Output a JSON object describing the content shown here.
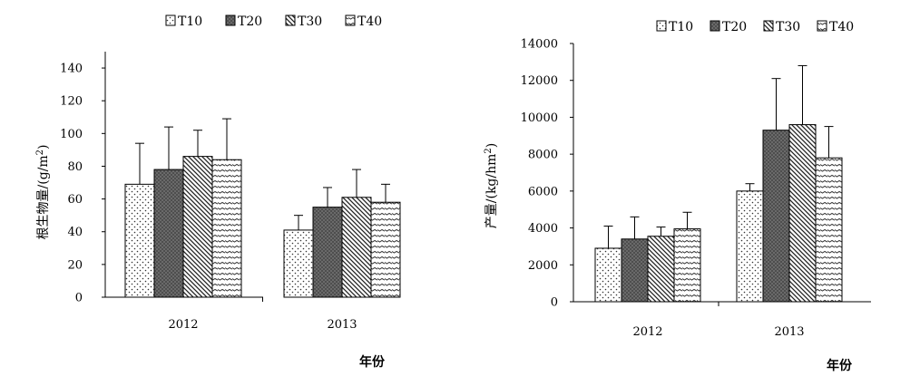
{
  "chart_data": [
    {
      "type": "bar",
      "title": "",
      "xlabel": "年份",
      "ylabel": "根生物量/(g/m²)",
      "ylabel_main": "根生物量/(g/m",
      "ylabel_sup": "2",
      "ylabel_close": ")",
      "ylim": [
        0,
        150
      ],
      "yticks": [
        0,
        20,
        40,
        60,
        80,
        100,
        120,
        140
      ],
      "categories": [
        "2012",
        "2013"
      ],
      "legend_position": "top",
      "grid": false,
      "series": [
        {
          "name": "T10",
          "pattern": "dots",
          "values": [
            69,
            41
          ],
          "errors": [
            25,
            9
          ]
        },
        {
          "name": "T20",
          "pattern": "solid-gray",
          "values": [
            78,
            55
          ],
          "errors": [
            26,
            12
          ]
        },
        {
          "name": "T30",
          "pattern": "diag-down",
          "values": [
            86,
            61
          ],
          "errors": [
            16,
            17
          ]
        },
        {
          "name": "T40",
          "pattern": "wave",
          "values": [
            84,
            58
          ],
          "errors": [
            25,
            11
          ]
        }
      ]
    },
    {
      "type": "bar",
      "title": "",
      "xlabel": "年份",
      "ylabel": "产量/(kg/hm²)",
      "ylabel_main": "产量/(kg/hm",
      "ylabel_sup": "2",
      "ylabel_close": ")",
      "ylim": [
        0,
        14000
      ],
      "yticks": [
        0,
        2000,
        4000,
        6000,
        8000,
        10000,
        12000,
        14000
      ],
      "categories": [
        "2012",
        "2013"
      ],
      "legend_position": "top-right",
      "grid": false,
      "series": [
        {
          "name": "T10",
          "pattern": "dots",
          "values": [
            2900,
            6000
          ],
          "errors": [
            1200,
            400
          ]
        },
        {
          "name": "T20",
          "pattern": "solid-gray",
          "values": [
            3400,
            9300
          ],
          "errors": [
            1200,
            2800
          ]
        },
        {
          "name": "T30",
          "pattern": "diag-down",
          "values": [
            3550,
            9600
          ],
          "errors": [
            500,
            3200
          ]
        },
        {
          "name": "T40",
          "pattern": "wave",
          "values": [
            3950,
            7800
          ],
          "errors": [
            900,
            1700
          ]
        }
      ]
    }
  ]
}
